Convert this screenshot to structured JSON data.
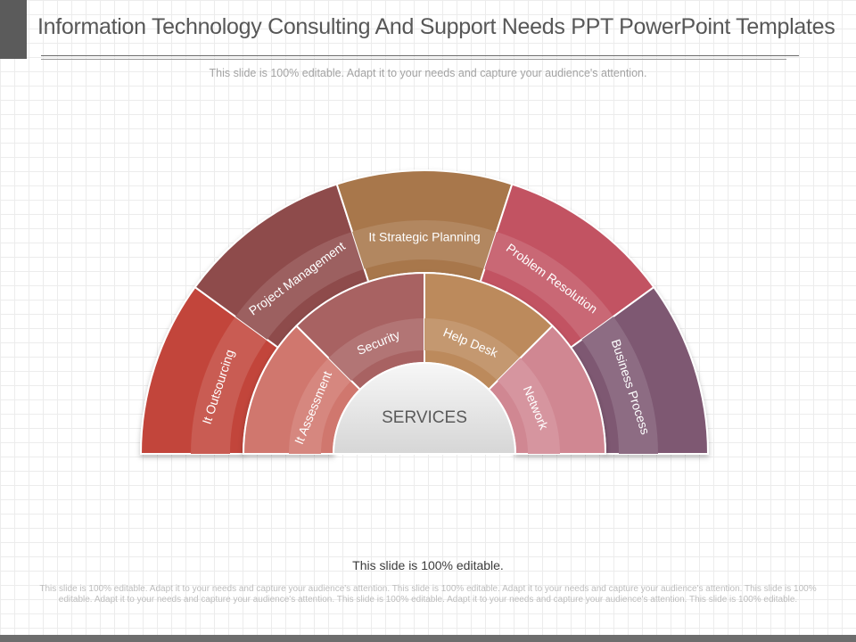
{
  "slide": {
    "title": "Information Technology Consulting And Support Needs PPT PowerPoint Templates",
    "subtitle": "This slide is 100% editable.  Adapt it to your needs and capture your audience's attention.",
    "editable_note": "This slide is 100% editable.",
    "body_text": "This slide is 100% editable. Adapt it to your needs and capture your audience's attention. This slide is 100% editable. Adapt it to your needs and capture your audience's attention. This slide is 100% editable. Adapt it to your needs and capture your audience's attention. This slide is 100% editable. Adapt it to your needs and capture your audience's attention. This slide is 100% editable."
  },
  "diagram": {
    "center_label": "SERVICES",
    "outer_ring": [
      {
        "label": "It Outsourcing",
        "color": "#c2453a"
      },
      {
        "label": "Project Management",
        "color": "#8e4c4c"
      },
      {
        "label": "It Strategic Planning",
        "color": "#a8774c"
      },
      {
        "label": "Problem Resolution",
        "color": "#c25262"
      },
      {
        "label": "Business Process",
        "color": "#7e5872"
      }
    ],
    "inner_ring": [
      {
        "label": "It Assessment",
        "color": "#d0776e"
      },
      {
        "label": "Security",
        "color": "#a86262"
      },
      {
        "label": "Help Desk",
        "color": "#bc8a5c"
      },
      {
        "label": "Network",
        "color": "#d08792"
      }
    ]
  }
}
